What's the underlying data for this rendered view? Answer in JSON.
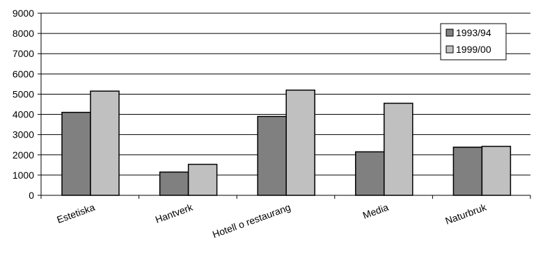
{
  "chart_data": {
    "type": "bar",
    "title": "",
    "xlabel": "",
    "ylabel": "",
    "ylim": [
      0,
      9000
    ],
    "yticks": [
      0,
      1000,
      2000,
      3000,
      4000,
      5000,
      6000,
      7000,
      8000,
      9000
    ],
    "grid": true,
    "legend_position": "top-right",
    "categories": [
      "Estetiska",
      "Hantverk",
      "Hotell o restaurang",
      "Media",
      "Naturbruk"
    ],
    "series": [
      {
        "name": "1993/94",
        "color": "#808080",
        "values": [
          4100,
          1150,
          3900,
          2150,
          2380
        ]
      },
      {
        "name": "1999/00",
        "color": "#c0c0c0",
        "values": [
          5150,
          1530,
          5200,
          4550,
          2420
        ]
      }
    ]
  }
}
